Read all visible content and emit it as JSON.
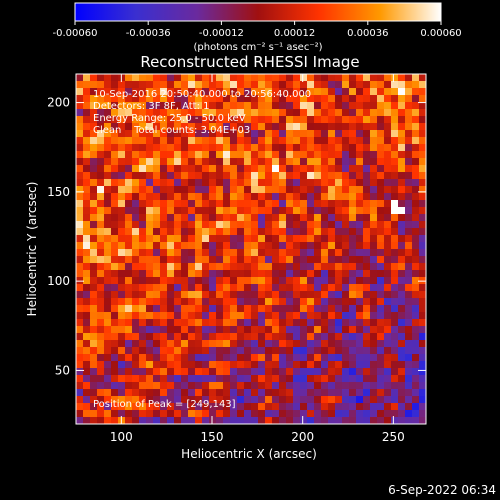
{
  "colorbar": {
    "ticks": [
      "-0.00060",
      "-0.00036",
      "-0.00012",
      "0.00012",
      "0.00036",
      "0.00060"
    ],
    "units": "(photons cm⁻² s⁻¹ asec⁻²)",
    "range": [
      -0.0006,
      0.0006
    ],
    "colors": [
      "#0000ff",
      "#3a2fd0",
      "#6a2a9e",
      "#a01010",
      "#ff3300",
      "#ff9900",
      "#ffffff"
    ]
  },
  "chart_data": {
    "type": "heatmap",
    "title": "Reconstructed RHESSI Image",
    "xlabel": "Heliocentric X (arcsec)",
    "ylabel": "Heliocentric Y (arcsec)",
    "xlim": [
      75,
      268
    ],
    "ylim": [
      20,
      216
    ],
    "xticks": [
      100,
      150,
      200,
      250
    ],
    "yticks": [
      50,
      100,
      150,
      200
    ],
    "peak": [
      249,
      143
    ],
    "annotations": [
      "10-Sep-2016 20:50:40.000 to 20:56:40.000",
      "Detectors: 3F 8F, Att: 1",
      "Energy Range: 25.0 - 50.0 keV",
      "Clean    Total counts: 3.04E+03",
      "Position of Peak = [249,143]"
    ]
  },
  "footer": {
    "timestamp": "6-Sep-2022 06:34"
  }
}
